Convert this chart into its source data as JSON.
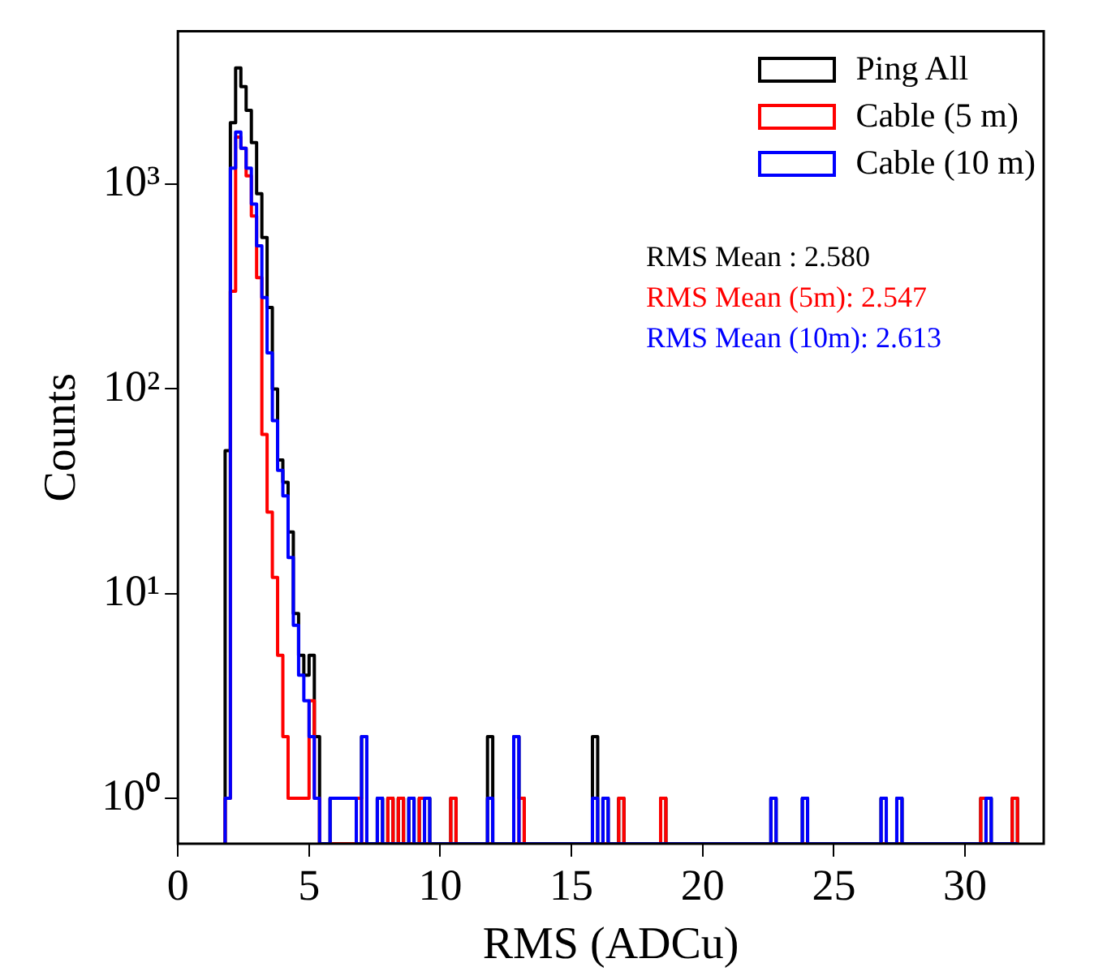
{
  "chart_data": {
    "type": "histogram",
    "xlabel": "RMS (ADCu)",
    "ylabel": "Counts",
    "log": "y",
    "grid": false,
    "legend": "top right",
    "xlim": [
      0,
      33
    ],
    "xticks": [
      0,
      5,
      10,
      15,
      20,
      25,
      30
    ],
    "ylim": [
      0.6,
      5600
    ],
    "yticks": [
      {
        "value": 1,
        "label": "10⁰"
      },
      {
        "value": 10,
        "label": "10¹"
      },
      {
        "value": 100,
        "label": "10²"
      },
      {
        "value": 1000,
        "label": "10³"
      }
    ],
    "bins": [
      1.8,
      2,
      2.2,
      2.4,
      2.6,
      2.8,
      3,
      3.2,
      3.4,
      3.6,
      3.8,
      4,
      4.2,
      4.4,
      4.6,
      4.8,
      5,
      5.2,
      5.4,
      5.6,
      5.8,
      6,
      6.2,
      6.4,
      6.6,
      6.8,
      7,
      7.2,
      7.4,
      7.6,
      7.8,
      8,
      8.2,
      8.4,
      8.6,
      8.8,
      9,
      9.2,
      9.4,
      9.6,
      9.8,
      10,
      10.2,
      10.4,
      10.6,
      10.8,
      11,
      11.2,
      11.4,
      11.6,
      11.8,
      12,
      12.2,
      12.4,
      12.6,
      12.8,
      13,
      13.2,
      13.4,
      13.6,
      13.8,
      14,
      14.2,
      14.4,
      14.6,
      14.8,
      15,
      15.2,
      15.4,
      15.6,
      15.8,
      16,
      16.2,
      16.4,
      16.6,
      16.8,
      17,
      17.2,
      17.4,
      17.6,
      17.8,
      18,
      18.2,
      18.4,
      18.6,
      18.8,
      19,
      19.2,
      19.4,
      19.6,
      19.8,
      20,
      20.2,
      20.4,
      20.6,
      20.8,
      21,
      21.2,
      21.4,
      21.6,
      21.8,
      22,
      22.2,
      22.4,
      22.6,
      22.8,
      23,
      23.2,
      23.4,
      23.6,
      23.8,
      24,
      24.2,
      24.4,
      24.6,
      24.8,
      25,
      25.2,
      25.4,
      25.6,
      25.8,
      26,
      26.2,
      26.4,
      26.6,
      26.8,
      27,
      27.2,
      27.4,
      27.6,
      27.8,
      28,
      28.2,
      28.4,
      28.6,
      28.8,
      29,
      29.2,
      29.4,
      29.6,
      29.8,
      30,
      30.2,
      30.4,
      30.6,
      30.8,
      31,
      31.2,
      31.4,
      31.6,
      31.8,
      32
    ],
    "series": [
      {
        "name": "Ping All",
        "color": "#000000",
        "values": [
          50,
          2000,
          3700,
          3000,
          2300,
          1600,
          900,
          550,
          250,
          100,
          45,
          35,
          20,
          8,
          5,
          4,
          5,
          2,
          null,
          null,
          1,
          1,
          1,
          1,
          1,
          1,
          2,
          null,
          null,
          1,
          null,
          1,
          null,
          1,
          null,
          1,
          null,
          1,
          1,
          null,
          null,
          null,
          null,
          1,
          null,
          null,
          null,
          null,
          null,
          null,
          2,
          null,
          null,
          null,
          null,
          2,
          1,
          null,
          null,
          null,
          null,
          null,
          null,
          null,
          null,
          null,
          null,
          null,
          null,
          null,
          2,
          null,
          1,
          null,
          null,
          1,
          null,
          null,
          null,
          null,
          null,
          null,
          null,
          1,
          null,
          null,
          null,
          null,
          null,
          null,
          null,
          null,
          null,
          null,
          null,
          null,
          null,
          null,
          null,
          null,
          null,
          null,
          null,
          null,
          1,
          null,
          null,
          null,
          null,
          null,
          1,
          null,
          null,
          null,
          null,
          null,
          null,
          null,
          null,
          null,
          null,
          null,
          null,
          null,
          null,
          1,
          null,
          null,
          1,
          null,
          null,
          null,
          null,
          null,
          null,
          null,
          null,
          null,
          null,
          null,
          null,
          null,
          null,
          null,
          1,
          1,
          null,
          null,
          null,
          null,
          1
        ]
      },
      {
        "name": "Cable (5 m)",
        "color": "#ff0000",
        "values": [
          1,
          300,
          1700,
          1500,
          1100,
          700,
          350,
          60,
          25,
          12,
          5,
          2,
          1,
          1,
          1,
          1,
          3,
          1,
          null,
          null,
          null,
          null,
          null,
          null,
          null,
          1,
          null,
          null,
          null,
          null,
          null,
          1,
          null,
          1,
          null,
          null,
          null,
          1,
          null,
          null,
          null,
          null,
          null,
          1,
          null,
          null,
          null,
          null,
          null,
          null,
          null,
          null,
          null,
          null,
          null,
          null,
          1,
          null,
          null,
          null,
          null,
          null,
          null,
          null,
          null,
          null,
          null,
          null,
          null,
          null,
          null,
          null,
          null,
          null,
          null,
          1,
          null,
          null,
          null,
          null,
          null,
          null,
          null,
          1,
          null,
          null,
          null,
          null,
          null,
          null,
          null,
          null,
          null,
          null,
          null,
          null,
          null,
          null,
          null,
          null,
          null,
          null,
          null,
          null,
          null,
          null,
          null,
          null,
          null,
          null,
          null,
          null,
          null,
          null,
          null,
          null,
          null,
          null,
          null,
          null,
          null,
          null,
          null,
          null,
          null,
          null,
          null,
          null,
          null,
          null,
          null,
          null,
          null,
          null,
          null,
          null,
          null,
          null,
          null,
          null,
          null,
          null,
          null,
          null,
          1,
          null,
          null,
          null,
          null,
          null,
          1
        ]
      },
      {
        "name": "Cable (10 m)",
        "color": "#0000ff",
        "values": [
          1,
          1200,
          1800,
          1500,
          1200,
          800,
          500,
          280,
          150,
          70,
          40,
          30,
          15,
          7,
          4,
          3,
          2,
          1,
          null,
          null,
          1,
          1,
          1,
          1,
          1,
          null,
          2,
          null,
          null,
          1,
          null,
          null,
          null,
          null,
          null,
          1,
          null,
          null,
          1,
          null,
          null,
          null,
          null,
          null,
          null,
          null,
          null,
          null,
          null,
          null,
          1,
          null,
          null,
          null,
          null,
          2,
          null,
          null,
          null,
          null,
          null,
          null,
          null,
          null,
          null,
          null,
          null,
          null,
          null,
          null,
          1,
          null,
          1,
          null,
          null,
          null,
          null,
          null,
          null,
          null,
          null,
          null,
          null,
          null,
          null,
          null,
          null,
          null,
          null,
          null,
          null,
          null,
          null,
          null,
          null,
          null,
          null,
          null,
          null,
          null,
          null,
          null,
          null,
          null,
          1,
          null,
          null,
          null,
          null,
          null,
          1,
          null,
          null,
          null,
          null,
          null,
          null,
          null,
          null,
          null,
          null,
          null,
          null,
          null,
          null,
          1,
          null,
          null,
          1,
          null,
          null,
          null,
          null,
          null,
          null,
          null,
          null,
          null,
          null,
          null,
          null,
          null,
          null,
          null,
          null,
          1,
          null,
          null,
          null,
          null,
          null
        ]
      }
    ],
    "annotations": [
      "RMS Mean : 2.580",
      "RMS Mean (5m): 2.547",
      "RMS Mean (10m): 2.613"
    ]
  }
}
